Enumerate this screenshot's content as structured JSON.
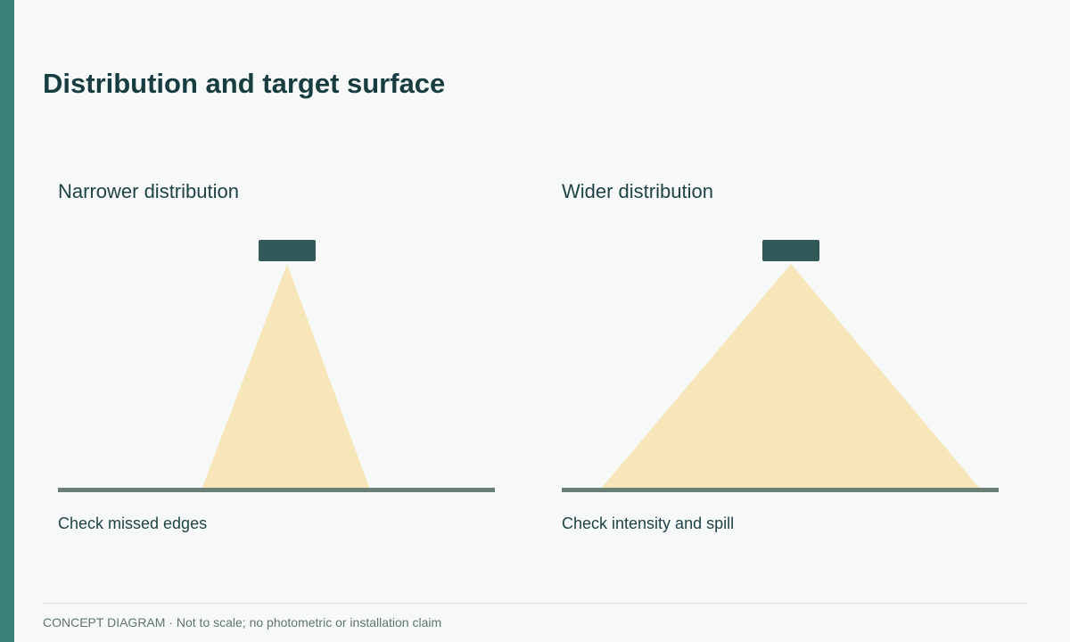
{
  "title": "Distribution and target surface",
  "panels": [
    {
      "heading": "Narrower distribution",
      "note": "Check missed edges"
    },
    {
      "heading": "Wider distribution",
      "note": "Check intensity and spill"
    }
  ],
  "footer": {
    "label": "CONCEPT DIAGRAM",
    "text": "· Not to scale; no photometric or installation claim"
  }
}
